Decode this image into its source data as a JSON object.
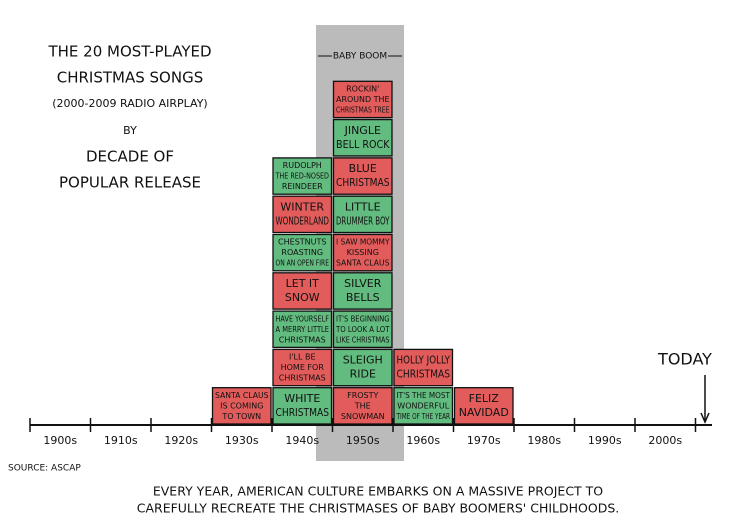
{
  "title_lines": [
    "THE 20 MOST-PLAYED",
    "CHRISTMAS SONGS",
    "(2000-2009 RADIO AIRPLAY)",
    "BY",
    "DECADE OF",
    "POPULAR RELEASE"
  ],
  "band_label": "BABY BOOM",
  "decades": [
    "1900s",
    "1910s",
    "1920s",
    "1930s",
    "1940s",
    "1950s",
    "1960s",
    "1970s",
    "1980s",
    "1990s",
    "2000s"
  ],
  "columns": [
    {
      "decade": "1930s",
      "songs": [
        {
          "lines": [
            "SANTA CLAUS",
            "IS COMING",
            "TO TOWN"
          ],
          "color": "#e25c5c"
        }
      ]
    },
    {
      "decade": "1940s",
      "songs": [
        {
          "lines": [
            "WHITE",
            "CHRISTMAS"
          ],
          "color": "#62bb7f"
        },
        {
          "lines": [
            "I'LL BE",
            "HOME FOR",
            "CHRISTMAS"
          ],
          "color": "#e25c5c"
        },
        {
          "lines": [
            "HAVE YOURSELF",
            "A MERRY LITTLE",
            "CHRISTMAS"
          ],
          "color": "#62bb7f"
        },
        {
          "lines": [
            "LET IT",
            "SNOW"
          ],
          "color": "#e25c5c"
        },
        {
          "lines": [
            "CHESTNUTS",
            "ROASTING",
            "ON AN OPEN FIRE"
          ],
          "color": "#62bb7f"
        },
        {
          "lines": [
            "WINTER",
            "WONDERLAND"
          ],
          "color": "#e25c5c"
        },
        {
          "lines": [
            "RUDOLPH",
            "THE RED-NOSED",
            "REINDEER"
          ],
          "color": "#62bb7f"
        }
      ]
    },
    {
      "decade": "1950s",
      "songs": [
        {
          "lines": [
            "FROSTY",
            "THE",
            "SNOWMAN"
          ],
          "color": "#e25c5c"
        },
        {
          "lines": [
            "SLEIGH",
            "RIDE"
          ],
          "color": "#62bb7f"
        },
        {
          "lines": [
            "IT'S BEGINNING",
            "TO LOOK A LOT",
            "LIKE CHRISTMAS"
          ],
          "color": "#62bb7f"
        },
        {
          "lines": [
            "SILVER",
            "BELLS"
          ],
          "color": "#62bb7f"
        },
        {
          "lines": [
            "I SAW MOMMY",
            "KISSING",
            "SANTA CLAUS"
          ],
          "color": "#e25c5c"
        },
        {
          "lines": [
            "LITTLE",
            "DRUMMER BOY"
          ],
          "color": "#62bb7f"
        },
        {
          "lines": [
            "BLUE",
            "CHRISTMAS"
          ],
          "color": "#e25c5c"
        },
        {
          "lines": [
            "JINGLE",
            "BELL ROCK"
          ],
          "color": "#62bb7f"
        },
        {
          "lines": [
            "ROCKIN'",
            "AROUND THE",
            "CHRISTMAS TREE"
          ],
          "color": "#e25c5c"
        }
      ]
    },
    {
      "decade": "1960s",
      "songs": [
        {
          "lines": [
            "IT'S THE MOST",
            "WONDERFUL",
            "TIME OF THE YEAR"
          ],
          "color": "#62bb7f"
        },
        {
          "lines": [
            "HOLLY JOLLY",
            "CHRISTMAS"
          ],
          "color": "#e25c5c"
        }
      ]
    },
    {
      "decade": "1970s",
      "songs": [
        {
          "lines": [
            "FELIZ",
            "NAVIDAD"
          ],
          "color": "#e25c5c"
        }
      ]
    }
  ],
  "today": "TODAY",
  "source": "SOURCE: ASCAP",
  "caption_lines": [
    "EVERY YEAR, AMERICAN CULTURE EMBARKS ON A MASSIVE PROJECT TO",
    "CAREFULLY RECREATE THE CHRISTMASES OF BABY BOOMERS' CHILDHOODS."
  ]
}
